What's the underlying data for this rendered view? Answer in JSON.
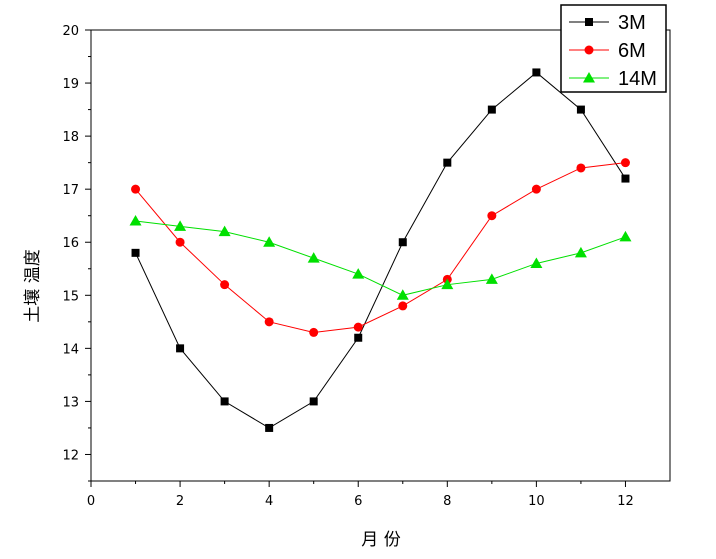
{
  "chart_data": {
    "type": "line",
    "title": "",
    "xlabel": "月 份",
    "ylabel": "土壤 温度",
    "xlim": [
      0,
      13
    ],
    "ylim": [
      11.5,
      20
    ],
    "x_ticks": [
      0,
      2,
      4,
      6,
      8,
      10,
      12
    ],
    "y_ticks": [
      12,
      13,
      14,
      15,
      16,
      17,
      18,
      19,
      20
    ],
    "grid": false,
    "legend_position": "top-right",
    "x": [
      1,
      2,
      3,
      4,
      5,
      6,
      7,
      8,
      9,
      10,
      11,
      12
    ],
    "series": [
      {
        "name": "3M",
        "color": "#000000",
        "marker": "square",
        "values": [
          15.8,
          14.0,
          13.0,
          12.5,
          13.0,
          14.2,
          16.0,
          17.5,
          18.5,
          19.2,
          18.5,
          17.2
        ]
      },
      {
        "name": "6M",
        "color": "#ff0000",
        "marker": "circle",
        "values": [
          17.0,
          16.0,
          15.2,
          14.5,
          14.3,
          14.4,
          14.8,
          15.3,
          16.5,
          17.0,
          17.4,
          17.5
        ]
      },
      {
        "name": "14M",
        "color": "#00e000",
        "marker": "triangle",
        "values": [
          16.4,
          16.3,
          16.2,
          16.0,
          15.7,
          15.4,
          15.0,
          15.2,
          15.3,
          15.6,
          15.8,
          16.1
        ]
      }
    ]
  }
}
